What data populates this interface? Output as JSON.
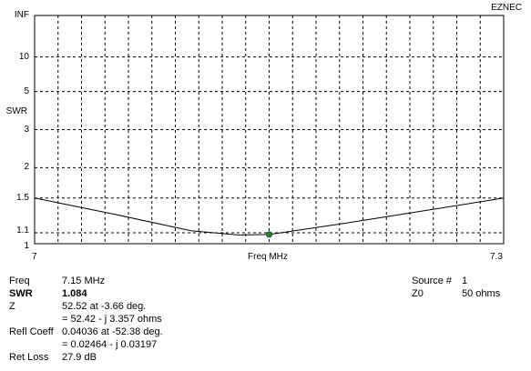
{
  "app_label": "EZNEC",
  "chart_data": {
    "type": "line",
    "xlabel": "Freq MHz",
    "ylabel": "SWR",
    "xlim": [
      7,
      7.3
    ],
    "x_tick_labels": [
      "7",
      "7.3"
    ],
    "y_scale": "swr",
    "y_ticks": [
      "INF",
      "10",
      "5",
      "3",
      "2",
      "1.5",
      "1.1",
      "1"
    ],
    "grid": true,
    "series": [
      {
        "x": [
          7.0,
          7.05,
          7.1,
          7.13,
          7.15,
          7.2,
          7.25,
          7.3
        ],
        "values": [
          1.5,
          1.3,
          1.12,
          1.08,
          1.084,
          1.2,
          1.34,
          1.5
        ]
      }
    ],
    "marker": {
      "x": 7.15,
      "y": 1.084
    },
    "colors": {
      "curve": "#000000",
      "grid": "#000000",
      "marker": "#2e7d32"
    }
  },
  "readout": {
    "freq_label": "Freq",
    "freq_value": "7.15 MHz",
    "swr_label": "SWR",
    "swr_value": "1.084",
    "z_label": "Z",
    "z_value1": "52.52 at -3.66 deg.",
    "z_value2": "= 52.42 - j 3.357 ohms",
    "refl_label": "Refl Coeff",
    "refl_value1": "0.04036 at -52.38 deg.",
    "refl_value2": "= 0.02464 - j 0.03197",
    "loss_label": "Ret Loss",
    "loss_value": "27.9 dB",
    "source_label": "Source #",
    "source_value": "1",
    "z0_label": "Z0",
    "z0_value": "50 ohms"
  }
}
